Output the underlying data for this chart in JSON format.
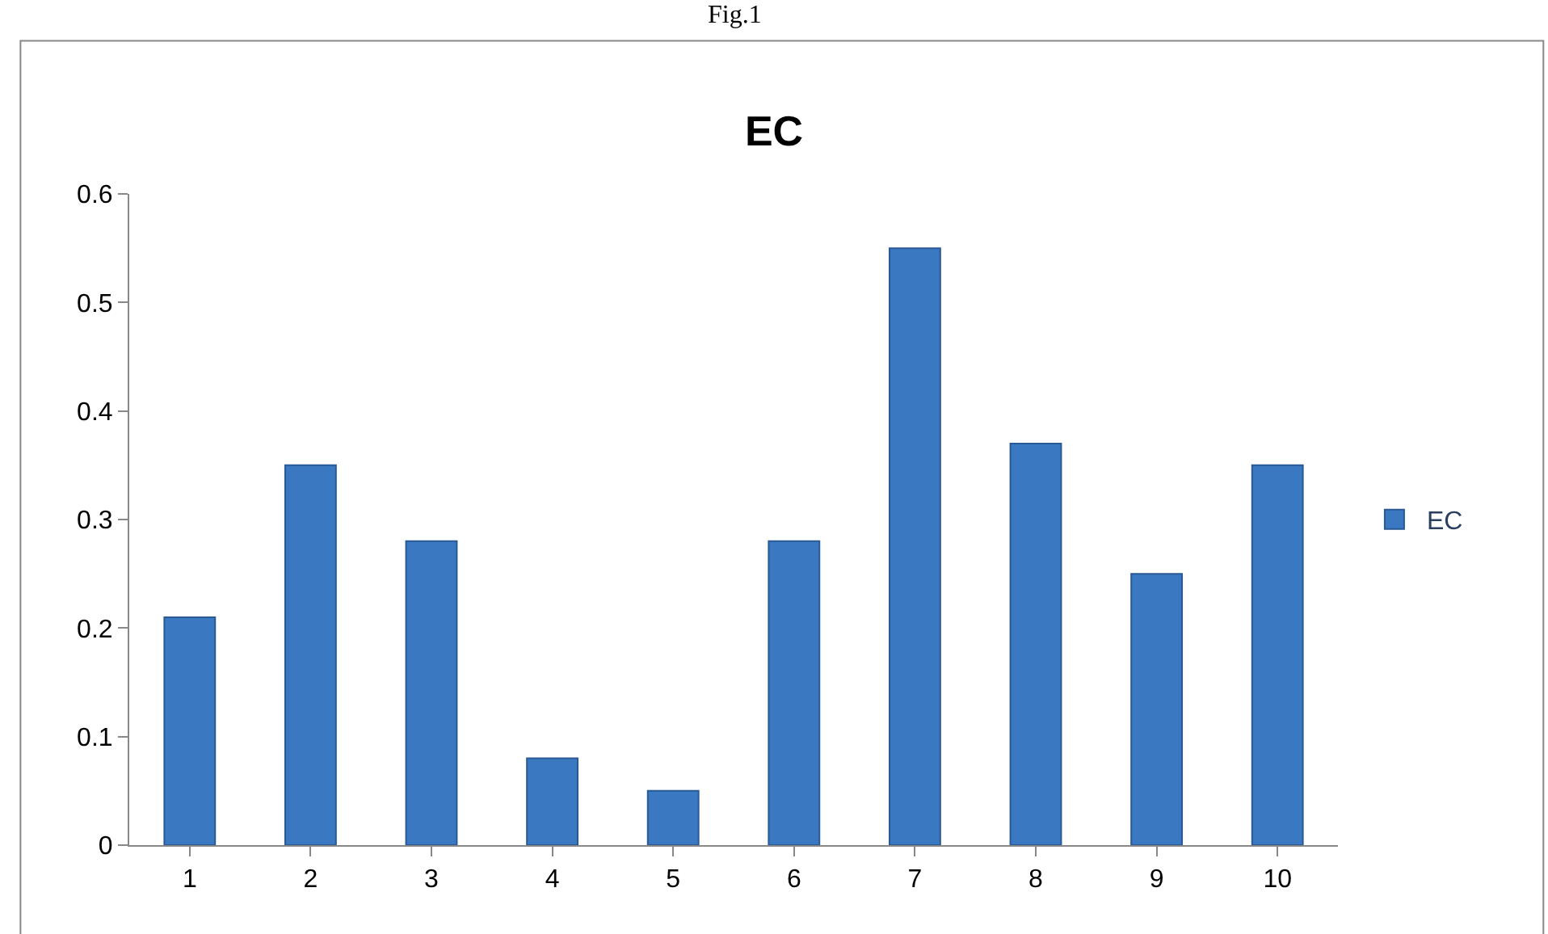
{
  "chart_data": {
    "type": "bar",
    "title": "EC",
    "annotations": [
      "Fig.1"
    ],
    "categories": [
      "1",
      "2",
      "3",
      "4",
      "5",
      "6",
      "7",
      "8",
      "9",
      "10"
    ],
    "series": [
      {
        "name": "EC",
        "color": "#3a78c2",
        "values": [
          0.21,
          0.35,
          0.28,
          0.08,
          0.05,
          0.28,
          0.55,
          0.37,
          0.25,
          0.35
        ]
      }
    ],
    "ylim": [
      0,
      0.6
    ],
    "yticks": [
      0,
      0.1,
      0.2,
      0.3,
      0.4,
      0.5,
      0.6
    ],
    "legend": "right"
  }
}
